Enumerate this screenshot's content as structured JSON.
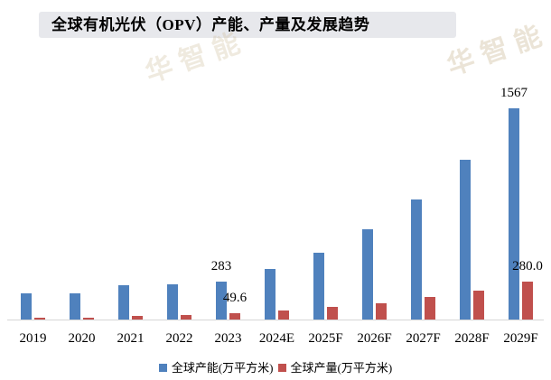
{
  "title": "全球有机光伏（OPV）产能、产量及发展趋势",
  "watermark": {
    "text": "华智能"
  },
  "colors": {
    "capacity": "#4f81bd",
    "production": "#c0504d",
    "title_bg": "#e7e8ec",
    "axis_line": "#d6d6d6"
  },
  "chart_data": {
    "type": "bar",
    "title": "全球有机光伏（OPV）产能、产量及发展趋势",
    "categories": [
      "2019",
      "2020",
      "2021",
      "2022",
      "2023",
      "2024E",
      "2025F",
      "2026F",
      "2027F",
      "2028F",
      "2029F"
    ],
    "series": [
      {
        "name": "全球产能(万平方米)",
        "color": "#4f81bd",
        "values": [
          195,
          195,
          255,
          260,
          283,
          375,
          495,
          670,
          890,
          1185,
          1567
        ]
      },
      {
        "name": "全球产量(万平方米)",
        "color": "#c0504d",
        "values": [
          13,
          17,
          30,
          37,
          49.6,
          66,
          92,
          122,
          166,
          212,
          280
        ]
      }
    ],
    "data_labels": [
      {
        "category": "2023",
        "series_index": 0,
        "text": "283"
      },
      {
        "category": "2023",
        "series_index": 1,
        "text": "49.6"
      },
      {
        "category": "2029F",
        "series_index": 0,
        "text": "1567"
      },
      {
        "category": "2029F",
        "series_index": 1,
        "text": "280.0"
      }
    ],
    "xlabel": "",
    "ylabel": "",
    "ylim": [
      0,
      1600
    ],
    "grid": false,
    "y_axis_visible": false,
    "legend_position": "bottom"
  },
  "legend": {
    "items": [
      {
        "label": "全球产能(万平方米)",
        "color": "#4f81bd"
      },
      {
        "label": "全球产量(万平方米)",
        "color": "#c0504d"
      }
    ]
  }
}
